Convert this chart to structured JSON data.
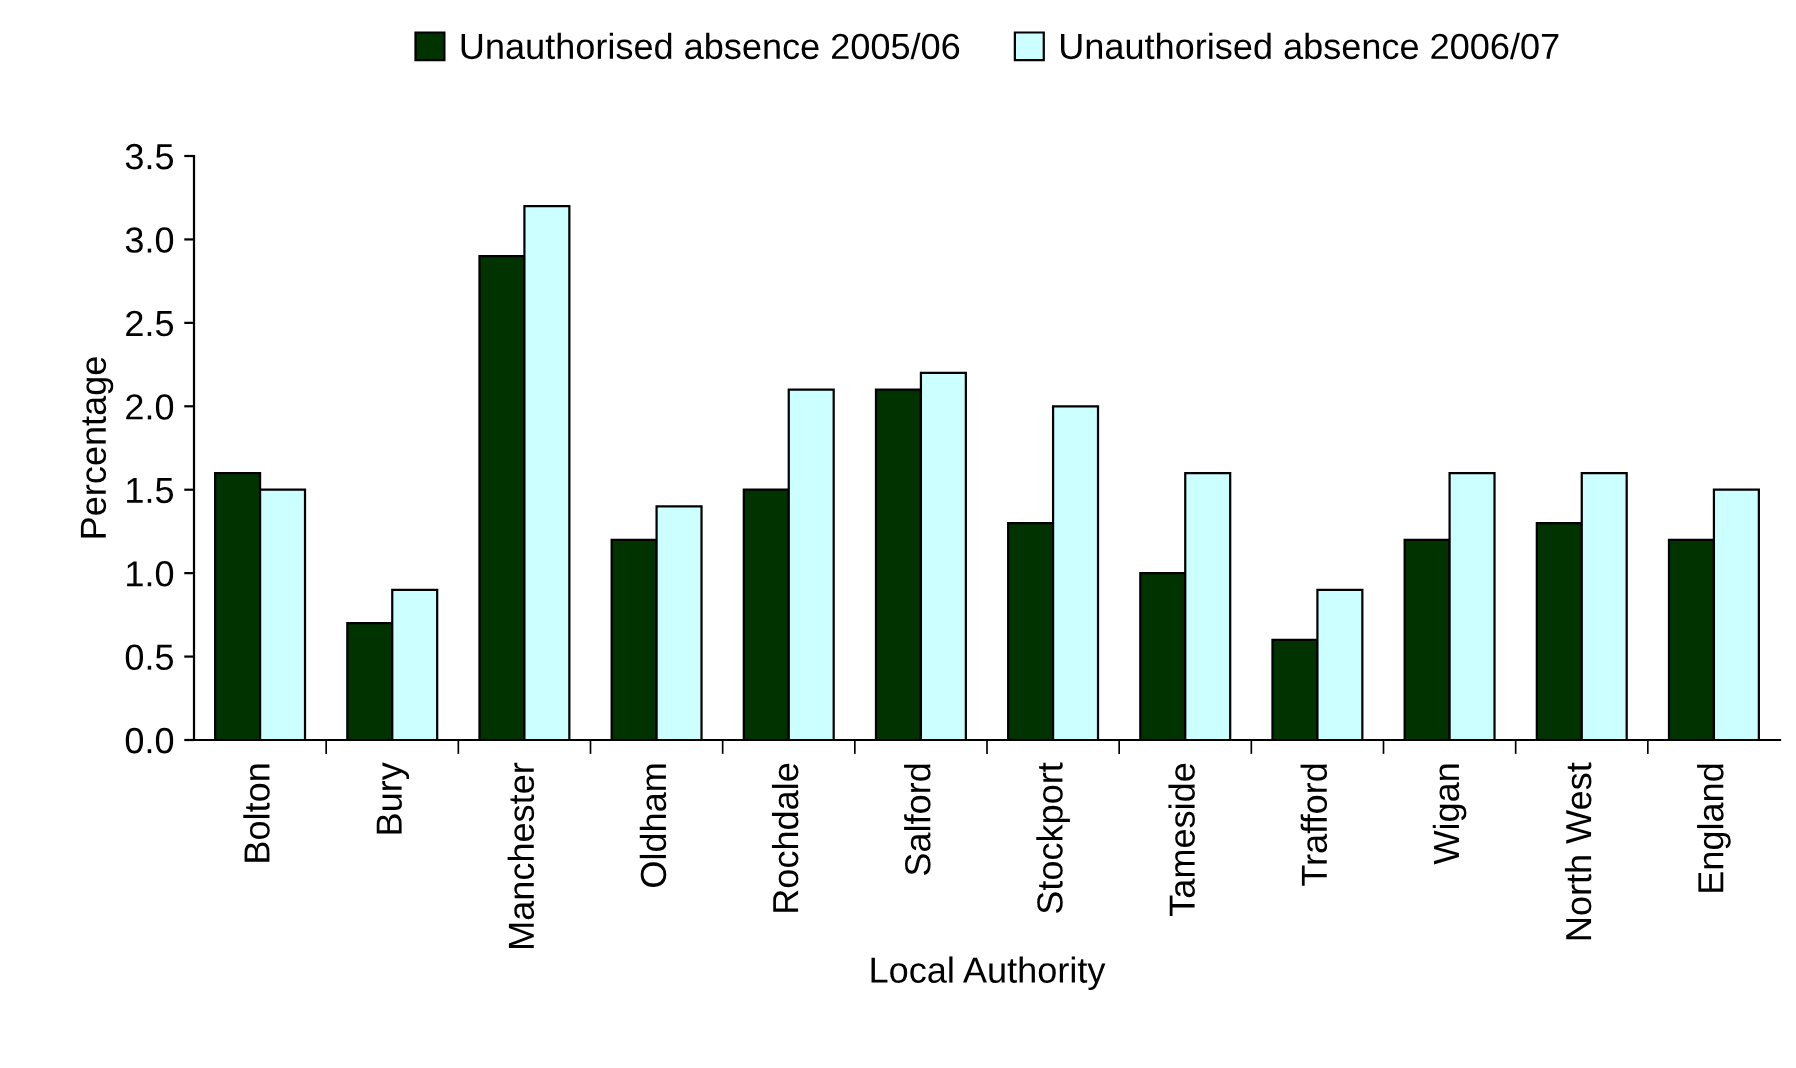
{
  "chart_data": {
    "type": "bar",
    "xlabel": "Local Authority",
    "ylabel": "Percentage",
    "categories": [
      "Bolton",
      "Bury",
      "Manchester",
      "Oldham",
      "Rochdale",
      "Salford",
      "Stockport",
      "Tameside",
      "Trafford",
      "Wigan",
      "North West",
      "England"
    ],
    "series": [
      {
        "name": "Unauthorised absence 2005/06",
        "color": "#003300",
        "values": [
          1.6,
          0.7,
          2.9,
          1.2,
          1.5,
          2.1,
          1.3,
          1.0,
          0.6,
          1.2,
          1.3,
          1.2
        ]
      },
      {
        "name": "Unauthorised absence 2006/07",
        "color": "#ccffff",
        "values": [
          1.5,
          0.9,
          3.2,
          1.4,
          2.1,
          2.2,
          2.0,
          1.6,
          0.9,
          1.6,
          1.6,
          1.5
        ]
      }
    ],
    "ylim": [
      0,
      3.5
    ],
    "yticks": [
      {
        "value": 0,
        "label": "0.0"
      },
      {
        "value": 0.5,
        "label": "0.5"
      },
      {
        "value": 1,
        "label": "1.0"
      },
      {
        "value": 1.5,
        "label": "1.5"
      },
      {
        "value": 2,
        "label": "2.0"
      },
      {
        "value": 2.5,
        "label": "2.5"
      },
      {
        "value": 3,
        "label": "3.0"
      },
      {
        "value": 3.5,
        "label": "3.5"
      }
    ],
    "grid": false,
    "legend": "top"
  }
}
